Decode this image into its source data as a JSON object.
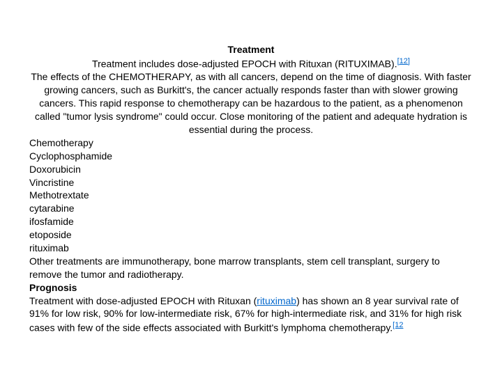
{
  "title": "Treatment",
  "intro_line": {
    "pre": "Treatment includes dose-adjusted EPOCH with Rituxan (R",
    "smallcaps": "ITUXIMAB",
    "post": ").",
    "ref": "[12]"
  },
  "body": "The effects of the CHEMOTHERAPY, as with all cancers, depend on the time of diagnosis. With faster growing cancers, such as Burkitt's, the cancer actually responds faster than with slower growing cancers. This rapid response to chemotherapy can be hazardous to the patient, as a phenomenon called \"tumor lysis syndrome\" could occur. Close monitoring of the patient and adequate hydration is essential during the process.",
  "chemo_heading": "Chemotherapy",
  "chemo_list": [
    "Cyclophosphamide",
    "Doxorubicin",
    "Vincristine",
    "Methotrextate",
    "cytarabine",
    "ifosfamide",
    "etoposide",
    "rituximab"
  ],
  "other": "Other treatments are immunotherapy, bone marrow transplants, stem cell transplant, surgery to remove the tumor and  radiotherapy.",
  "prognosis_heading": "Prognosis",
  "prognosis": {
    "pre": "Treatment with dose-adjusted EPOCH with Rituxan (",
    "link": "rituximab",
    "mid": ") has shown an 8 year survival rate of 91% for low risk, 90% for low-intermediate risk, 67% for high-intermediate risk, and 31% for high risk cases with few of the side effects associated with Burkitt's lymphoma chemotherapy.",
    "ref": "[12"
  },
  "colors": {
    "text": "#000000",
    "link": "#0066cc",
    "bg": "#ffffff"
  },
  "fontsize_pt": 14
}
